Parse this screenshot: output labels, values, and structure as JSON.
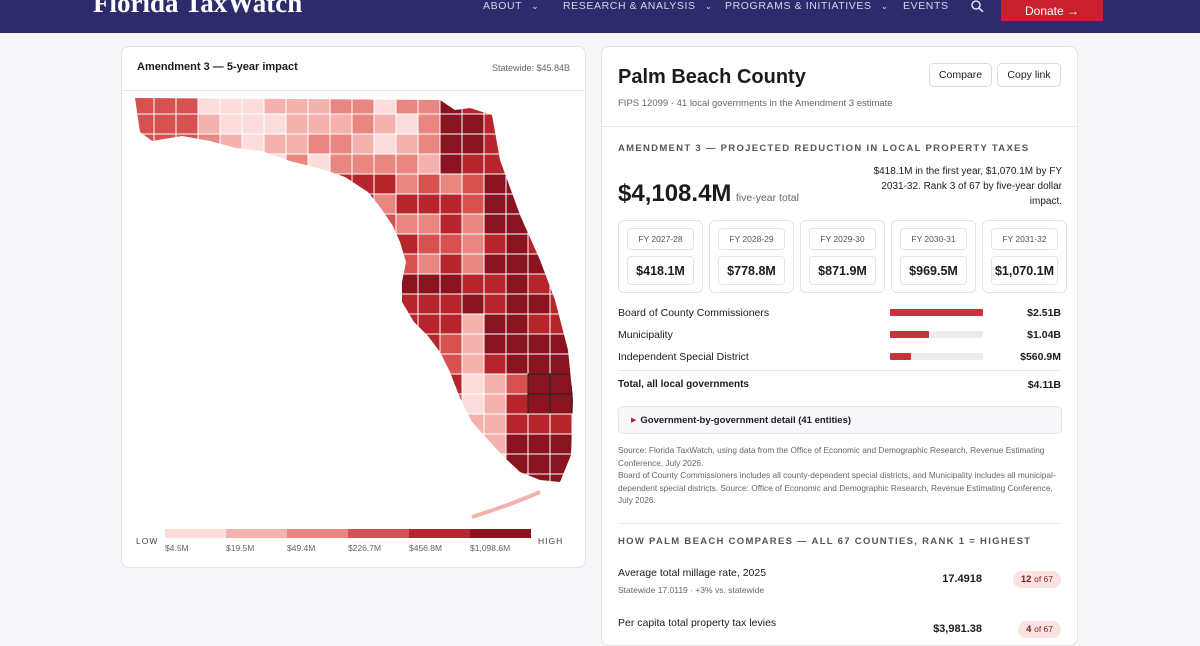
{
  "nav": {
    "logo": "Florida TaxWatch",
    "items": [
      "ABOUT",
      "RESEARCH & ANALYSIS",
      "PROGRAMS & INITIATIVES",
      "EVENTS"
    ],
    "donate": "Donate →"
  },
  "map_card": {
    "title": "Amendment 3 — 5-year impact",
    "statewide": "Statewide: $45.84B",
    "legend": {
      "low": "LOW",
      "high": "HIGH",
      "bins": [
        "$4.5M",
        "$19.5M",
        "$49.4M",
        "$226.7M",
        "$456.8M",
        "$1,098.6M"
      ],
      "colors": [
        "#fbdedb",
        "#f3b2ad",
        "#e88782",
        "#d6514f",
        "#b5252b",
        "#8a1320"
      ]
    }
  },
  "county": {
    "name": "Palm Beach County",
    "meta": "FIPS 12099 · 41 local governments in the Amendment 3 estimate",
    "buttons": [
      "Compare",
      "Copy link"
    ],
    "section_title": "AMENDMENT 3 — PROJECTED REDUCTION IN LOCAL PROPERTY TAXES",
    "total": "$4,108.4M",
    "total_note": "five-year total",
    "summary": "$418.1M in the first year, $1,070.1M by FY 2031-32. Rank 3 of 67 by five-year dollar impact.",
    "years": [
      {
        "label": "FY 2027-28",
        "amount": "$418.1M"
      },
      {
        "label": "FY 2028-29",
        "amount": "$778.8M"
      },
      {
        "label": "FY 2029-30",
        "amount": "$871.9M"
      },
      {
        "label": "FY 2030-31",
        "amount": "$969.5M"
      },
      {
        "label": "FY 2031-32",
        "amount": "$1,070.1M"
      }
    ],
    "breakdown": {
      "names": [
        "Board of County Commissioners",
        "Municipality",
        "Independent Special District"
      ],
      "values": [
        2510,
        1040,
        560.9
      ],
      "value_labels": [
        "$2.51B",
        "$1.04B",
        "$560.9M"
      ],
      "color": "#c8323a",
      "total_label": "Total, all local governments",
      "total_value": "$4.11B"
    },
    "details": "Government-by-government detail (41 entities)",
    "source": [
      "Source: Florida TaxWatch, using data from the Office of Economic and Demographic Research, Revenue Estimating Conference, July 2026.",
      "Board of County Commissioners includes all county-dependent special districts, and Municipality includes all municipal-dependent special districts. Source: Office of Economic and Demographic Research, Revenue Estimating Conference, July 2026."
    ],
    "compare_title": "HOW PALM BEACH COMPARES — ALL 67 COUNTIES, RANK 1 = HIGHEST",
    "compare": [
      {
        "metric": "Average total millage rate, 2025",
        "sub": "Statewide 17.0119 · +3% vs. statewide",
        "value": "17.4918",
        "rank": "12",
        "of": "of 67"
      },
      {
        "metric": "Per capita total property tax levies",
        "value": "$3,981.38",
        "rank": "4",
        "of": "of 67"
      }
    ]
  }
}
